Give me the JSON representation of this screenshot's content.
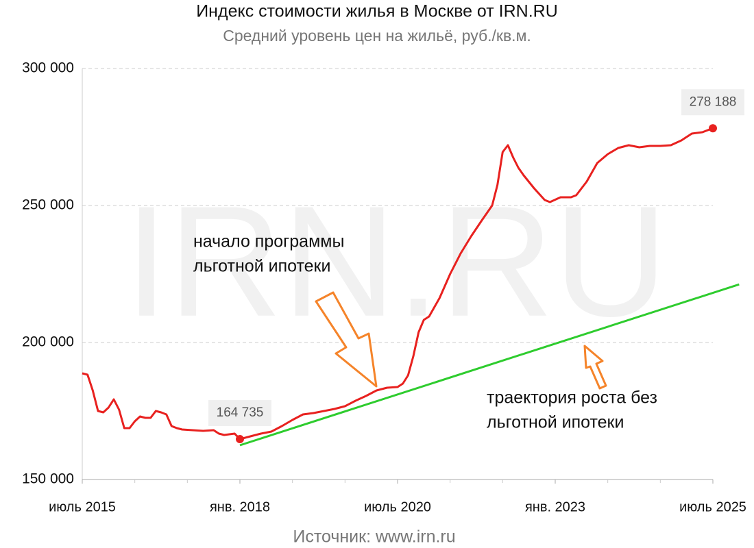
{
  "chart_data": {
    "type": "line",
    "title": "Индекс стоимости жилья в Москве от IRN.RU",
    "subtitle": "Средний уровень цен на жильё, руб./кв.м.",
    "watermark": "IRN.RU",
    "source": "Источник: www.irn.ru",
    "xlim": [
      "2015-07",
      "2025-07"
    ],
    "ylim": [
      150000,
      300000
    ],
    "yticks": [
      {
        "value": 150000,
        "label": "150 000"
      },
      {
        "value": 200000,
        "label": "200 000"
      },
      {
        "value": 250000,
        "label": "250 000"
      },
      {
        "value": 300000,
        "label": "300 000"
      }
    ],
    "xticks": [
      {
        "value": "2015-07",
        "label": "июль 2015"
      },
      {
        "value": "2018-01",
        "label": "янв. 2018"
      },
      {
        "value": "2020-07",
        "label": "июль 2020"
      },
      {
        "value": "2023-01",
        "label": "янв. 2023"
      },
      {
        "value": "2025-07",
        "label": "июль 2025"
      }
    ],
    "x_minor_ticks": [
      "2016-05",
      "2017-03",
      "2018-11",
      "2019-09",
      "2021-05",
      "2022-03",
      "2023-11",
      "2024-09"
    ],
    "grid": true,
    "series": [
      {
        "color": "#e8211f",
        "x": [
          "2015-07",
          "2015-08",
          "2015-09",
          "2015-10",
          "2015-11",
          "2015-12",
          "2016-01",
          "2016-02",
          "2016-03",
          "2016-04",
          "2016-05",
          "2016-06",
          "2016-07",
          "2016-08",
          "2016-09",
          "2016-10",
          "2016-11",
          "2016-12",
          "2017-01",
          "2017-02",
          "2017-04",
          "2017-06",
          "2017-08",
          "2017-09",
          "2017-10",
          "2017-12",
          "2018-01",
          "2018-03",
          "2018-05",
          "2018-07",
          "2018-09",
          "2018-11",
          "2019-01",
          "2019-03",
          "2019-05",
          "2019-07",
          "2019-09",
          "2019-11",
          "2020-01",
          "2020-03",
          "2020-05",
          "2020-07",
          "2020-08",
          "2020-09",
          "2020-10",
          "2020-11",
          "2020-12",
          "2021-01",
          "2021-03",
          "2021-05",
          "2021-07",
          "2021-09",
          "2021-11",
          "2022-01",
          "2022-02",
          "2022-03",
          "2022-04",
          "2022-05",
          "2022-06",
          "2022-07",
          "2022-09",
          "2022-11",
          "2022-12",
          "2023-02",
          "2023-04",
          "2023-05",
          "2023-07",
          "2023-09",
          "2023-11",
          "2024-01",
          "2024-03",
          "2024-05",
          "2024-07",
          "2024-09",
          "2024-11",
          "2025-01",
          "2025-03",
          "2025-05",
          "2025-07"
        ],
        "values": [
          188750,
          188250,
          182500,
          175000,
          174500,
          176250,
          179250,
          175500,
          168750,
          168750,
          171250,
          173000,
          172500,
          172500,
          175000,
          174500,
          173750,
          169500,
          168750,
          168250,
          168000,
          167750,
          168000,
          166750,
          166250,
          166750,
          164735,
          165750,
          166750,
          167500,
          169500,
          171750,
          173750,
          174250,
          175000,
          175750,
          176750,
          178750,
          180500,
          182500,
          183500,
          183750,
          185000,
          188000,
          195000,
          203750,
          208250,
          209500,
          216250,
          225000,
          232500,
          238750,
          244500,
          250000,
          257500,
          269500,
          272000,
          267500,
          263750,
          261000,
          256250,
          252000,
          251250,
          253000,
          253000,
          253750,
          258750,
          265500,
          268750,
          271000,
          272000,
          271250,
          271750,
          271750,
          272000,
          273750,
          276250,
          276750,
          278188
        ],
        "markers": [
          "2018-01",
          "2025-07"
        ],
        "value_labels": {
          "26": "164 735",
          "78": "278 188"
        }
      },
      {
        "color": "#2ecc2e",
        "x": [
          "2018-01",
          "2025-12"
        ],
        "values": [
          162500,
          221200
        ]
      }
    ],
    "annotations": [
      {
        "lines": [
          "начало программы",
          "льготной ипотеки"
        ]
      },
      {
        "lines": [
          "траектория роста без",
          "льготной ипотеки"
        ]
      }
    ]
  }
}
